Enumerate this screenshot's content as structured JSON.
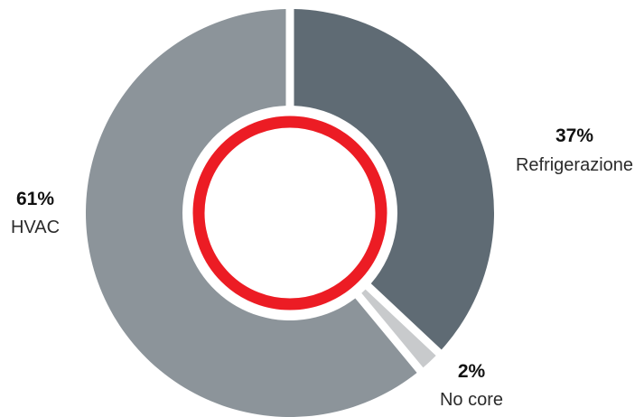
{
  "chart_data": {
    "type": "pie",
    "donut": true,
    "slices": [
      {
        "label": "Refrigerazione",
        "value": 37,
        "display": "37%",
        "color": "#5f6b74"
      },
      {
        "label": "No core",
        "value": 2,
        "display": "2%",
        "color": "#c8cacc"
      },
      {
        "label": "HVAC",
        "value": 61,
        "display": "61%",
        "color": "#8c949a"
      }
    ],
    "center_ring_color": "#ec1c24",
    "title": "",
    "legend": "none"
  }
}
